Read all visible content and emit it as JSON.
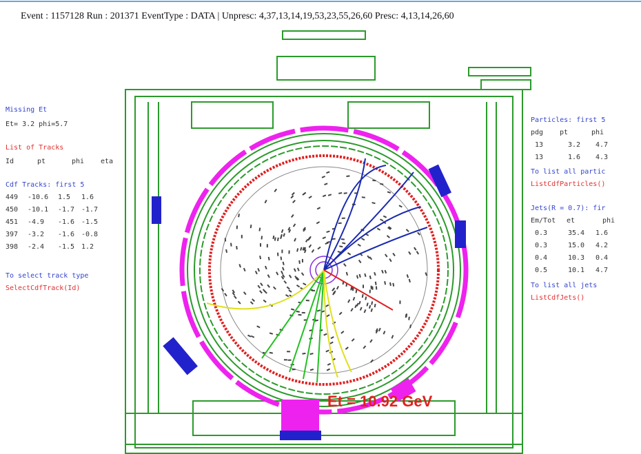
{
  "header": {
    "title": "Event : 1157128  Run : 201371  EventType : DATA | Unpresc: 4,37,13,14,19,53,23,55,26,60 Presc: 4,13,14,26,60"
  },
  "left_panel": {
    "missing_et_title": "Missing Et",
    "missing_et": "Et= 3.2 phi=5.7",
    "tracks_title": "List of Tracks",
    "tracks_columns": [
      "Id",
      "pt",
      "phi",
      "eta"
    ],
    "cdf_title": "Cdf Tracks: first 5",
    "cdf_rows": [
      [
        "449",
        "-10.6",
        "1.5",
        "1.6"
      ],
      [
        "450",
        "-10.1",
        "-1.7",
        "-1.7"
      ],
      [
        "451",
        "-4.9",
        "-1.6",
        "-1.5"
      ],
      [
        "397",
        "-3.2",
        "-1.6",
        "-0.8"
      ],
      [
        "398",
        "-2.4",
        "-1.5",
        "1.2"
      ]
    ],
    "select_hint": "To select track type",
    "select_cmd": "SelectCdfTrack(Id)"
  },
  "right_panel": {
    "particles_title": "Particles: first 5",
    "particle_columns": [
      "pdg",
      "pt",
      "phi"
    ],
    "particle_rows": [
      [
        "13",
        "3.2",
        "4.7"
      ],
      [
        "13",
        "1.6",
        "4.3"
      ]
    ],
    "particles_hint": "To list all partic",
    "particles_cmd": "ListCdfParticles()",
    "jets_title": "Jets(R = 0.7): fir",
    "jet_columns": [
      "Em/Tot",
      "et",
      "phi"
    ],
    "jet_rows": [
      [
        "0.3",
        "35.4",
        "1.6"
      ],
      [
        "0.3",
        "15.0",
        "4.2"
      ],
      [
        "0.4",
        "10.3",
        "0.4"
      ],
      [
        "0.5",
        "10.1",
        "4.7"
      ]
    ],
    "jets_hint": "To list all jets",
    "jets_cmd": "ListCdfJets()"
  },
  "display": {
    "et_label": "Et =  10.92 GeV"
  }
}
